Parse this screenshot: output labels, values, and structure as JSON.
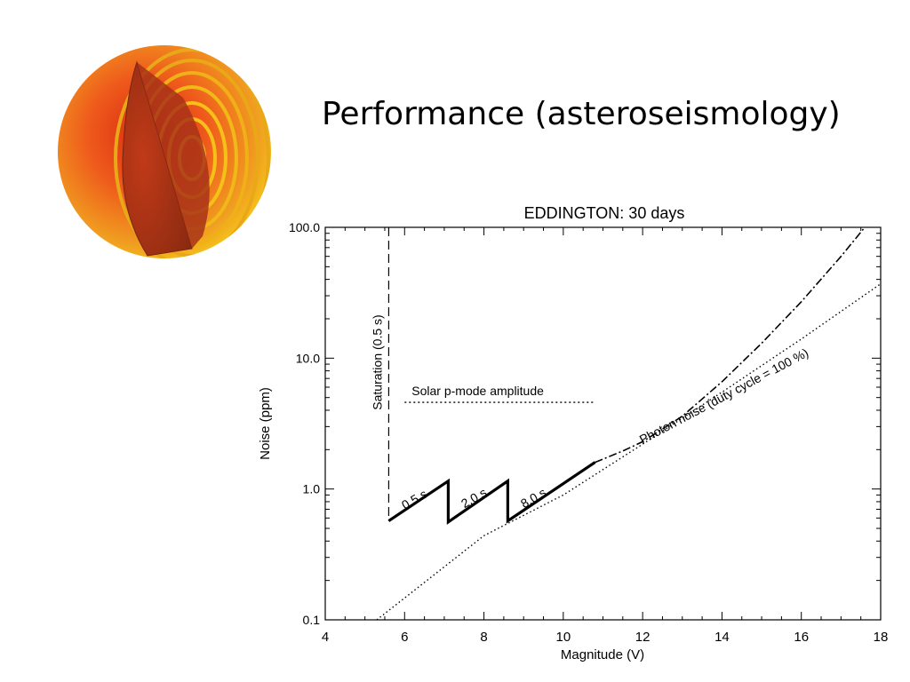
{
  "slide": {
    "title": "Performance (asteroseismology)"
  },
  "colors": {
    "sphere_outer": "#f4c21a",
    "sphere_mid": "#ef5a1c",
    "sphere_inner": "#d82a10",
    "ink": "#000000"
  },
  "chart_data": {
    "type": "line",
    "title": "EDDINGTON: 30 days",
    "xlabel": "Magnitude (V)",
    "ylabel": "Noise (ppm)",
    "xlim": [
      4,
      18
    ],
    "ylim": [
      0.1,
      100
    ],
    "yscale": "log",
    "x_ticks": [
      4,
      6,
      8,
      10,
      12,
      14,
      16,
      18
    ],
    "x_tick_labels": [
      "4",
      "6",
      "8",
      "10",
      "12",
      "14",
      "16",
      "18"
    ],
    "y_ticks": [
      0.1,
      1,
      10,
      100
    ],
    "y_tick_labels": [
      "0.1",
      "1.0",
      "10.0",
      "100.0"
    ],
    "grid": false,
    "series": [
      {
        "style": "solid-thick",
        "points": [
          [
            5.6,
            0.57
          ],
          [
            7.1,
            1.15
          ],
          [
            7.1,
            0.56
          ],
          [
            8.6,
            1.15
          ],
          [
            8.6,
            0.57
          ],
          [
            10.8,
            1.6
          ]
        ]
      },
      {
        "style": "dash-dot",
        "points": [
          [
            10.8,
            1.6
          ],
          [
            11.5,
            1.95
          ],
          [
            12,
            2.3
          ],
          [
            13,
            3.6
          ],
          [
            14,
            6.6
          ],
          [
            15,
            13
          ],
          [
            16,
            27
          ],
          [
            17,
            60
          ],
          [
            17.6,
            100
          ]
        ]
      },
      {
        "name": "Photon noise (duty cycle = 100 %)",
        "style": "dotted",
        "points": [
          [
            5.3,
            0.1
          ],
          [
            8,
            0.44
          ],
          [
            10,
            0.9
          ],
          [
            12,
            2.2
          ],
          [
            14,
            5.5
          ],
          [
            16,
            14
          ],
          [
            18,
            37
          ]
        ]
      }
    ],
    "annotations": [
      {
        "text": "Saturation (0.5 s)",
        "type": "vline-dashed",
        "x": 5.6,
        "y_range": [
          0.57,
          100
        ]
      },
      {
        "text": "Solar p-mode amplitude",
        "type": "hline-dotted",
        "y": 4.6,
        "x_range": [
          6,
          10.8
        ]
      },
      {
        "text": "0.5 s",
        "x": 6.3,
        "y": 0.78
      },
      {
        "text": "2.0 s",
        "x": 7.8,
        "y": 0.8
      },
      {
        "text": "8.0 s",
        "x": 9.3,
        "y": 0.8
      },
      {
        "text": "Photon noise (duty cycle = 100 %)",
        "x": 14.1,
        "y": 4.8
      }
    ]
  }
}
